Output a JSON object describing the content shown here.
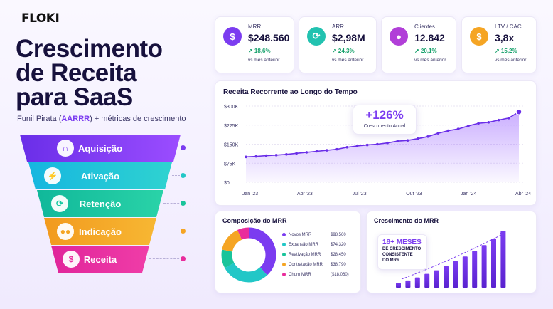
{
  "brand": {
    "logo": "FLOKI"
  },
  "headline": {
    "lines": [
      "Crescimento",
      "de Receita",
      "para SaaS"
    ]
  },
  "subtitle": {
    "before": "Funil Pirata (",
    "highlight": "AARRR",
    "after": ") + métricas de crescimento"
  },
  "funnel": {
    "stages": [
      {
        "label": "Aquisição",
        "icon": "magnet-icon",
        "color": "#7b3cf0",
        "dot": "#7b3cf0"
      },
      {
        "label": "Ativação",
        "icon": "lightning-icon",
        "color": "#1fc8d8",
        "dot": "#22c7c7"
      },
      {
        "label": "Retenção",
        "icon": "refresh-icon",
        "color": "#17c9a1",
        "dot": "#19c49b"
      },
      {
        "label": "Indicação",
        "icon": "users-icon",
        "color": "#f5a524",
        "dot": "#f5a524"
      },
      {
        "label": "Receita",
        "icon": "dollar-icon",
        "color": "#e92c9c",
        "dot": "#e92c9c"
      }
    ]
  },
  "kpis": [
    {
      "label": "MRR",
      "value": "$248.560",
      "delta": "↗ 18,6%",
      "foot": "vs mês anterior",
      "icon": "dollar-icon",
      "color": "#7b3cf0"
    },
    {
      "label": "ARR",
      "value": "$2,98M",
      "delta": "↗ 24,3%",
      "foot": "vs mês anterior",
      "icon": "refresh-icon",
      "color": "#22c2b0"
    },
    {
      "label": "Clientes",
      "value": "12.842",
      "delta": "↗ 20,1%",
      "foot": "vs mês anterior",
      "icon": "user-icon",
      "color": "#b13fd8"
    },
    {
      "label": "LTV / CAC",
      "value": "3,8x",
      "delta": "↗ 15,2%",
      "foot": "vs mês anterior",
      "icon": "dollar-icon",
      "color": "#f5a524"
    }
  ],
  "revenue_chart": {
    "title": "Receita Recorrente ao Longo do Tempo",
    "callout_value": "+126%",
    "callout_label": "Crescimento Anual"
  },
  "mrr_composition": {
    "title": "Composição do MRR",
    "items": [
      {
        "label": "Novos MRR",
        "value": "$98.560",
        "color": "#7b3cf0"
      },
      {
        "label": "Expansão MRR",
        "value": "$74.320",
        "color": "#22c7c7"
      },
      {
        "label": "Reativação MRR",
        "value": "$28.450",
        "color": "#19c49b"
      },
      {
        "label": "Contratação MRR",
        "value": "$38.790",
        "color": "#f5a524"
      },
      {
        "label": "Churn MRR",
        "value": "($18.060)",
        "color": "#e92c9c"
      }
    ]
  },
  "mrr_growth": {
    "title": "Crescimento do MRR",
    "streak_value": "18+ MESES",
    "streak_label": [
      "DE CRESCIMENTO",
      "CONSISTENTE",
      "DO MRR"
    ]
  },
  "chart_data": [
    {
      "type": "area",
      "title": "Receita Recorrente ao Longo do Tempo",
      "y_ticks": [
        "$0",
        "$75K",
        "$150K",
        "$225K",
        "$300K"
      ],
      "x_ticks": [
        "Jan '23",
        "Abr '23",
        "Jul '23",
        "Out '23",
        "Jan '24",
        "Abr '24"
      ],
      "ylim": [
        0,
        300000
      ],
      "series": [
        {
          "values": [
            100000,
            102000,
            105000,
            107000,
            110000,
            114000,
            118000,
            122000,
            126000,
            130000,
            138000,
            143000,
            147000,
            150000,
            155000,
            162000,
            165000,
            172000,
            180000,
            193000,
            203000,
            210000,
            222000,
            232000,
            236000,
            245000,
            253000,
            277000
          ]
        }
      ]
    },
    {
      "type": "pie",
      "title": "Composição do MRR",
      "categories": [
        "Novos MRR",
        "Expansão MRR",
        "Reativação MRR",
        "Contratação MRR",
        "Churn MRR"
      ],
      "values": [
        98560,
        74320,
        28450,
        38790,
        18060
      ]
    },
    {
      "type": "bar",
      "title": "Crescimento do MRR",
      "values": [
        8,
        12,
        17,
        23,
        29,
        36,
        44,
        52,
        61,
        71,
        82,
        95
      ]
    }
  ]
}
